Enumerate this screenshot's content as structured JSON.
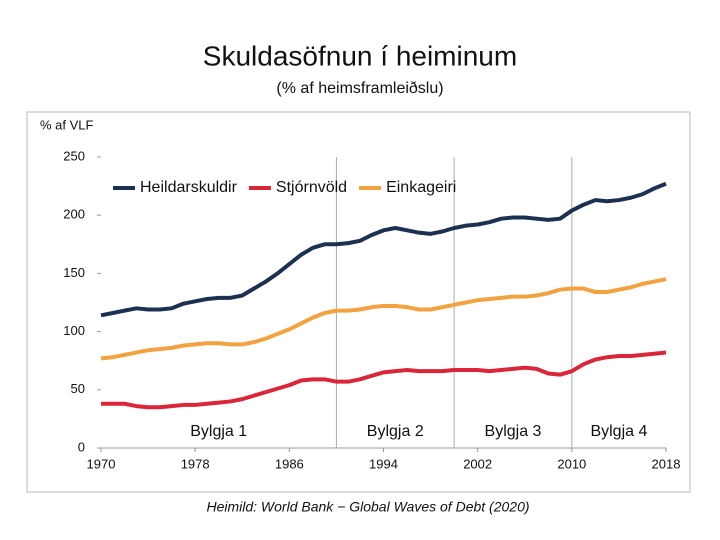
{
  "chart_data": {
    "type": "line",
    "title": "Skuldasöfnun í heiminum",
    "subtitle": "(% af heimsframleiðslu)",
    "y_label": "% af VLF",
    "source": "Heimild: World Bank − Global Waves of Debt (2020)",
    "x": [
      1970,
      1971,
      1972,
      1973,
      1974,
      1975,
      1976,
      1977,
      1978,
      1979,
      1980,
      1981,
      1982,
      1983,
      1984,
      1985,
      1986,
      1987,
      1988,
      1989,
      1990,
      1991,
      1992,
      1993,
      1994,
      1995,
      1996,
      1997,
      1998,
      1999,
      2000,
      2001,
      2002,
      2003,
      2004,
      2005,
      2006,
      2007,
      2008,
      2009,
      2010,
      2011,
      2012,
      2013,
      2014,
      2015,
      2016,
      2017,
      2018
    ],
    "series": [
      {
        "name": "Heildarskuldir",
        "color": "#1c3152",
        "values": [
          114,
          116,
          118,
          120,
          119,
          119,
          120,
          124,
          126,
          128,
          129,
          129,
          131,
          137,
          143,
          150,
          158,
          166,
          172,
          175,
          175,
          176,
          178,
          183,
          187,
          189,
          187,
          185,
          184,
          186,
          189,
          191,
          192,
          194,
          197,
          198,
          198,
          197,
          196,
          197,
          204,
          209,
          213,
          212,
          213,
          215,
          218,
          223,
          227
        ]
      },
      {
        "name": "Stjórnvöld",
        "color": "#d92638",
        "values": [
          38,
          38,
          38,
          36,
          35,
          35,
          36,
          37,
          37,
          38,
          39,
          40,
          42,
          45,
          48,
          51,
          54,
          58,
          59,
          59,
          57,
          57,
          59,
          62,
          65,
          66,
          67,
          66,
          66,
          66,
          67,
          67,
          67,
          66,
          67,
          68,
          69,
          68,
          64,
          63,
          66,
          72,
          76,
          78,
          79,
          79,
          80,
          81,
          82
        ]
      },
      {
        "name": "Einkageiri",
        "color": "#f2a23f",
        "values": [
          77,
          78,
          80,
          82,
          84,
          85,
          86,
          88,
          89,
          90,
          90,
          89,
          89,
          91,
          94,
          98,
          102,
          107,
          112,
          116,
          118,
          118,
          119,
          121,
          122,
          122,
          121,
          119,
          119,
          121,
          123,
          125,
          127,
          128,
          129,
          130,
          130,
          131,
          133,
          136,
          137,
          137,
          134,
          134,
          136,
          138,
          141,
          143,
          145
        ]
      }
    ],
    "waves": [
      {
        "label": "Bylgja 1",
        "start": 1970,
        "end": 1990
      },
      {
        "label": "Bylgja 2",
        "start": 1990,
        "end": 2000
      },
      {
        "label": "Bylgja 3",
        "start": 2000,
        "end": 2010
      },
      {
        "label": "Bylgja 4",
        "start": 2010,
        "end": 2018
      }
    ],
    "xlim": [
      1970,
      2018
    ],
    "xticks": [
      1970,
      1978,
      1986,
      1994,
      2002,
      2010,
      2018
    ],
    "ylim": [
      0,
      250
    ],
    "yticks": [
      0,
      50,
      100,
      150,
      200,
      250
    ],
    "legend": "top-left"
  }
}
